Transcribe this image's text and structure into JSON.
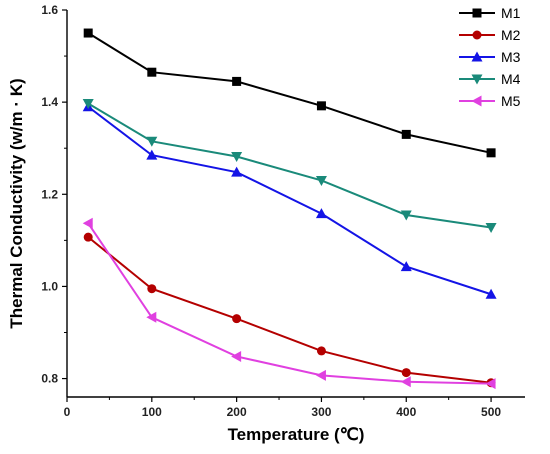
{
  "chart_data": {
    "type": "line",
    "xlabel": "Temperature (℃)",
    "ylabel": "Thermal Conductivity (w/m · K)",
    "xlim": [
      0,
      540
    ],
    "ylim": [
      0.76,
      1.6
    ],
    "x_ticks": [
      0,
      100,
      200,
      300,
      400,
      500
    ],
    "y_ticks": [
      0.8,
      1.0,
      1.2,
      1.4,
      1.6
    ],
    "y_tick_labels": [
      "0.8",
      "1.0",
      "1.2",
      "1.4",
      "1.6"
    ],
    "legend_position": "top-right",
    "x": [
      25,
      100,
      200,
      300,
      400,
      500
    ],
    "series": [
      {
        "name": "M1",
        "color": "#000000",
        "marker": "square",
        "values": [
          1.55,
          1.465,
          1.445,
          1.392,
          1.33,
          1.29
        ]
      },
      {
        "name": "M2",
        "color": "#b40000",
        "marker": "circle",
        "values": [
          1.107,
          0.995,
          0.93,
          0.86,
          0.813,
          0.791
        ]
      },
      {
        "name": "M3",
        "color": "#1414e6",
        "marker": "triangle-up",
        "values": [
          1.39,
          1.285,
          1.248,
          1.158,
          1.043,
          0.983
        ]
      },
      {
        "name": "M4",
        "color": "#1a8a7a",
        "marker": "triangle-down",
        "values": [
          1.397,
          1.315,
          1.282,
          1.23,
          1.155,
          1.128
        ]
      },
      {
        "name": "M5",
        "color": "#e040e0",
        "marker": "triangle-left",
        "values": [
          1.137,
          0.933,
          0.848,
          0.807,
          0.793,
          0.789
        ]
      }
    ]
  }
}
